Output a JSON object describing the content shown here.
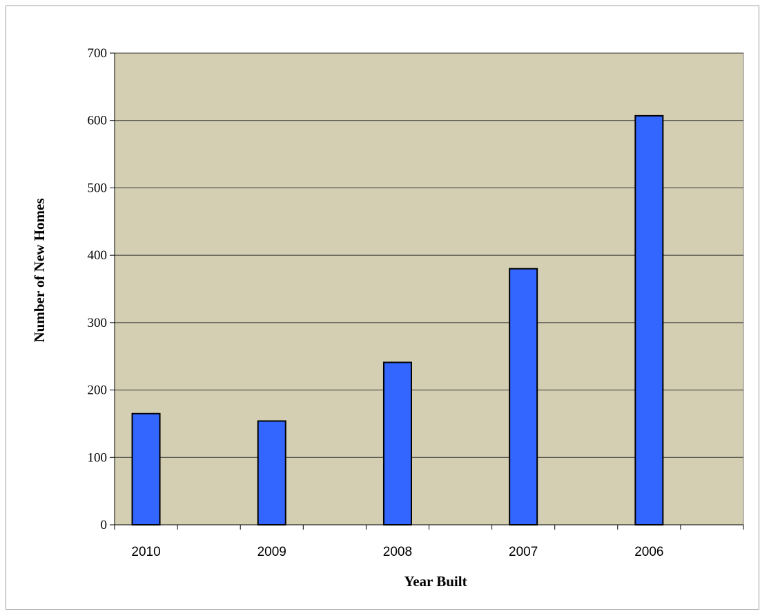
{
  "chart_data": {
    "type": "bar",
    "categories": [
      "2010",
      "2009",
      "2008",
      "2007",
      "2006"
    ],
    "values": [
      165,
      154,
      241,
      380,
      607
    ],
    "xlabel": "Year Built",
    "ylabel": "Number of New Homes",
    "ylim": [
      0,
      700
    ],
    "yticks": [
      "0",
      "100",
      "200",
      "300",
      "400",
      "500",
      "600",
      "700"
    ],
    "grid": true,
    "legend": "none",
    "colors": {
      "plot_background": "#d4cfb2",
      "bar_fill": "#3366ff",
      "bar_stroke": "#000000",
      "gridline": "#333333"
    }
  }
}
